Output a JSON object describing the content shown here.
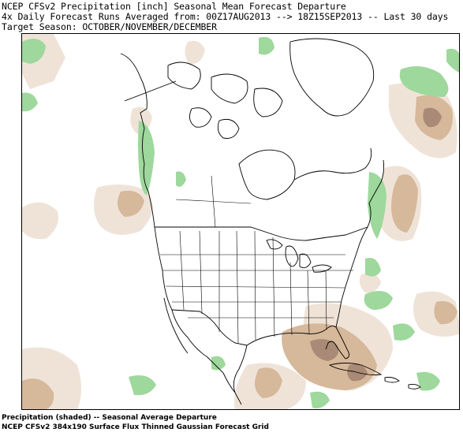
{
  "header": {
    "line1": "NCEP CFSv2 Precipitation [inch] Seasonal Mean Forecast Departure",
    "line2": "4x Daily Forecast Runs Averaged from: 00Z17AUG2013 --> 18Z15SEP2013 -- Last 30 days",
    "line3": "Target Season: OCTOBER/NOVEMBER/DECEMBER"
  },
  "footer": {
    "line1": "Precipitation (shaded) -- Seasonal Average Departure",
    "line2": "NCEP CFSv2 384x190 Surface Flux Thinned Gaussian Forecast Grid"
  },
  "colors": {
    "wet": "#9ed89c",
    "dry_light": "#efe3d8",
    "dry_medium": "#d6b89a",
    "dry_dark": "#a88a76",
    "outline": "#000000"
  }
}
